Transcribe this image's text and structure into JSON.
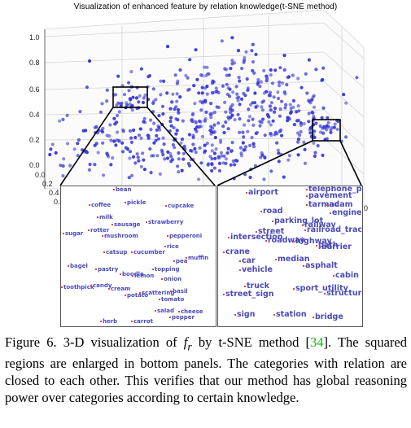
{
  "figure": {
    "title": "Visualization of enhanced feature by relation knowledge(t-SNE method)",
    "z_ticks": [
      "1.0",
      "0.8",
      "0.6",
      "0.4",
      "0.2",
      "0.0"
    ],
    "x_ticks": [
      "0.0",
      "0.2",
      "0.4",
      "0.6"
    ],
    "right_tick": "0",
    "mid_tick": ".6",
    "point_color": "#3b3bd6",
    "label_color": "#4a49b8"
  },
  "left_panel": {
    "labels": [
      "bean",
      "coffee",
      "pickle",
      "cupcake",
      "milk",
      "sausage",
      "strawberry",
      "sugar",
      "rotter",
      "mushroom",
      "pepperoni",
      "rice",
      "catsup",
      "cucumber",
      "pea",
      "muffin",
      "bagel",
      "pastry",
      "boodle",
      "lemon",
      "topping",
      "onion",
      "toothpick",
      "candy",
      "cream",
      "potato",
      "scattering",
      "basil",
      "tomato",
      "salad",
      "cheese",
      "pepper",
      "herb",
      "carrot"
    ]
  },
  "right_panel": {
    "labels": [
      "airport",
      "telephone_pole",
      "pavement",
      "tarmac",
      "adam",
      "engine",
      "road",
      "parking_lot",
      "railway",
      "street",
      "railroad_track",
      "intersection",
      "roadway",
      "highway",
      "path",
      "barrier",
      "crane",
      "car",
      "median",
      "vehicle",
      "asphalt",
      "cabin",
      "truck",
      "sport_utility",
      "street_sign",
      "structure",
      "sign",
      "station",
      "bridge"
    ]
  },
  "caption": {
    "prefix": "Figure 6. 3-D visualization of ",
    "symbol": "f",
    "sub": "r",
    "middle": " by t-SNE method [",
    "ref": "34",
    "rest": "]. The squared regions are enlarged in bottom panels. The categories with relation are closed to each other. This verifies that our method has global reasoning power over categories according to certain knowledge."
  }
}
